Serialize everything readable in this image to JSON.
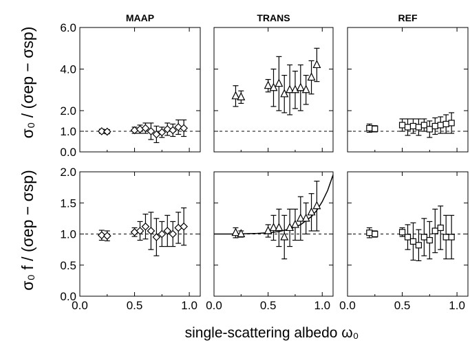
{
  "chart_data": {
    "type": "scatter",
    "panel_titles": [
      "MAAP",
      "TRANS",
      "REF"
    ],
    "xlabel": "single-scattering albedo ω₀",
    "xlim": [
      0.0,
      1.1
    ],
    "x_ticks": [
      "0.0",
      "0.5",
      "1.0"
    ],
    "rows": [
      {
        "ylabel": "σ₀ / (σep − σsp)",
        "ylim": [
          0.0,
          6.0
        ],
        "y_ticks": [
          "0.0",
          "1.0",
          "2.0",
          "4.0",
          "6.0"
        ],
        "reference_line": 1.0,
        "panels": [
          {
            "title": "MAAP",
            "marker": "diamond",
            "points": [
              {
                "x": 0.2,
                "y": 1.0,
                "err": 0.1
              },
              {
                "x": 0.25,
                "y": 0.98,
                "err": 0.1
              },
              {
                "x": 0.5,
                "y": 1.05,
                "err": 0.15
              },
              {
                "x": 0.55,
                "y": 1.1,
                "err": 0.2
              },
              {
                "x": 0.6,
                "y": 1.15,
                "err": 0.25
              },
              {
                "x": 0.65,
                "y": 1.0,
                "err": 0.4
              },
              {
                "x": 0.7,
                "y": 0.85,
                "err": 0.4
              },
              {
                "x": 0.75,
                "y": 0.95,
                "err": 0.25
              },
              {
                "x": 0.8,
                "y": 1.1,
                "err": 0.3
              },
              {
                "x": 0.85,
                "y": 1.05,
                "err": 0.3
              },
              {
                "x": 0.9,
                "y": 1.2,
                "err": 0.35
              },
              {
                "x": 0.95,
                "y": 1.15,
                "err": 0.4
              }
            ]
          },
          {
            "title": "TRANS",
            "marker": "triangle",
            "points": [
              {
                "x": 0.2,
                "y": 2.7,
                "err": 0.5
              },
              {
                "x": 0.25,
                "y": 2.65,
                "err": 0.3
              },
              {
                "x": 0.5,
                "y": 3.2,
                "err": 0.3
              },
              {
                "x": 0.55,
                "y": 3.1,
                "err": 0.9
              },
              {
                "x": 0.6,
                "y": 3.3,
                "err": 1.3
              },
              {
                "x": 0.65,
                "y": 2.8,
                "err": 0.9
              },
              {
                "x": 0.7,
                "y": 3.0,
                "err": 1.2
              },
              {
                "x": 0.75,
                "y": 3.0,
                "err": 0.9
              },
              {
                "x": 0.8,
                "y": 3.1,
                "err": 1.1
              },
              {
                "x": 0.85,
                "y": 3.0,
                "err": 0.7
              },
              {
                "x": 0.9,
                "y": 3.6,
                "err": 0.8
              },
              {
                "x": 0.95,
                "y": 4.2,
                "err": 0.8
              }
            ]
          },
          {
            "title": "REF",
            "marker": "square",
            "points": [
              {
                "x": 0.2,
                "y": 1.15,
                "err": 0.2
              },
              {
                "x": 0.25,
                "y": 1.12,
                "err": 0.15
              },
              {
                "x": 0.5,
                "y": 1.3,
                "err": 0.3
              },
              {
                "x": 0.55,
                "y": 1.2,
                "err": 0.4
              },
              {
                "x": 0.6,
                "y": 1.25,
                "err": 0.35
              },
              {
                "x": 0.65,
                "y": 1.2,
                "err": 0.4
              },
              {
                "x": 0.7,
                "y": 1.3,
                "err": 0.3
              },
              {
                "x": 0.75,
                "y": 1.1,
                "err": 0.4
              },
              {
                "x": 0.8,
                "y": 1.25,
                "err": 0.4
              },
              {
                "x": 0.85,
                "y": 1.3,
                "err": 0.4
              },
              {
                "x": 0.9,
                "y": 1.35,
                "err": 0.45
              },
              {
                "x": 0.95,
                "y": 1.4,
                "err": 0.5
              }
            ]
          }
        ]
      },
      {
        "ylabel": "σ₀ f / (σep − σsp)",
        "ylim": [
          0.0,
          2.0
        ],
        "y_ticks": [
          "0.0",
          "0.5",
          "1.0",
          "1.5",
          "2.0"
        ],
        "reference_line": 1.0,
        "panels": [
          {
            "title": "MAAP",
            "marker": "diamond",
            "points": [
              {
                "x": 0.2,
                "y": 0.98,
                "err": 0.08
              },
              {
                "x": 0.25,
                "y": 0.97,
                "err": 0.08
              },
              {
                "x": 0.5,
                "y": 1.03,
                "err": 0.07
              },
              {
                "x": 0.55,
                "y": 1.05,
                "err": 0.15
              },
              {
                "x": 0.6,
                "y": 1.12,
                "err": 0.2
              },
              {
                "x": 0.65,
                "y": 1.05,
                "err": 0.3
              },
              {
                "x": 0.7,
                "y": 0.95,
                "err": 0.3
              },
              {
                "x": 0.75,
                "y": 1.0,
                "err": 0.2
              },
              {
                "x": 0.8,
                "y": 1.05,
                "err": 0.25
              },
              {
                "x": 0.85,
                "y": 1.0,
                "err": 0.2
              },
              {
                "x": 0.9,
                "y": 1.1,
                "err": 0.25
              },
              {
                "x": 0.95,
                "y": 1.12,
                "err": 0.3
              }
            ]
          },
          {
            "title": "TRANS",
            "marker": "triangle",
            "points": [
              {
                "x": 0.2,
                "y": 1.02,
                "err": 0.08
              },
              {
                "x": 0.25,
                "y": 1.0,
                "err": 0.05
              },
              {
                "x": 0.5,
                "y": 1.05,
                "err": 0.1
              },
              {
                "x": 0.55,
                "y": 1.1,
                "err": 0.2
              },
              {
                "x": 0.6,
                "y": 1.1,
                "err": 0.3
              },
              {
                "x": 0.65,
                "y": 0.95,
                "err": 0.35
              },
              {
                "x": 0.7,
                "y": 1.1,
                "err": 0.3
              },
              {
                "x": 0.75,
                "y": 1.15,
                "err": 0.25
              },
              {
                "x": 0.8,
                "y": 1.25,
                "err": 0.35
              },
              {
                "x": 0.85,
                "y": 1.25,
                "err": 0.25
              },
              {
                "x": 0.9,
                "y": 1.35,
                "err": 0.3
              },
              {
                "x": 0.95,
                "y": 1.45,
                "err": 0.4
              }
            ],
            "curve": {
              "x": [
                0.0,
                0.2,
                0.4,
                0.5,
                0.6,
                0.7,
                0.8,
                0.9,
                0.95,
                1.0,
                1.05,
                1.1
              ],
              "y": [
                1.0,
                1.0,
                1.01,
                1.02,
                1.04,
                1.08,
                1.15,
                1.28,
                1.38,
                1.52,
                1.7,
                1.95
              ]
            }
          },
          {
            "title": "REF",
            "marker": "square",
            "points": [
              {
                "x": 0.2,
                "y": 1.02,
                "err": 0.08
              },
              {
                "x": 0.25,
                "y": 1.0,
                "err": 0.05
              },
              {
                "x": 0.5,
                "y": 1.03,
                "err": 0.07
              },
              {
                "x": 0.55,
                "y": 0.95,
                "err": 0.2
              },
              {
                "x": 0.6,
                "y": 0.88,
                "err": 0.3
              },
              {
                "x": 0.65,
                "y": 0.82,
                "err": 0.25
              },
              {
                "x": 0.7,
                "y": 0.95,
                "err": 0.3
              },
              {
                "x": 0.75,
                "y": 0.9,
                "err": 0.3
              },
              {
                "x": 0.8,
                "y": 1.05,
                "err": 0.35
              },
              {
                "x": 0.85,
                "y": 1.1,
                "err": 0.35
              },
              {
                "x": 0.9,
                "y": 0.95,
                "err": 0.35
              },
              {
                "x": 0.95,
                "y": 0.95,
                "err": 0.35
              }
            ]
          }
        ]
      }
    ]
  }
}
